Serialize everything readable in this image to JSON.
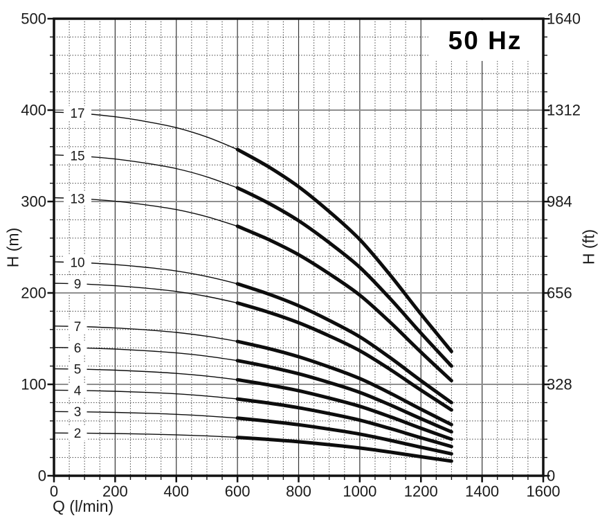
{
  "chart_data": {
    "type": "line",
    "title": "50 Hz",
    "xlabel": "Q (l/min)",
    "ylabel_left": "H (m)",
    "ylabel_right": "H (ft)",
    "x_axis": {
      "min": 0,
      "max": 1600,
      "major_tick_step": 200,
      "minor_tick_step": 50,
      "tick_labels": [
        "0",
        "200",
        "400",
        "600",
        "800",
        "1000",
        "1200",
        "1400",
        "1600"
      ]
    },
    "y_axis_left": {
      "min": 0,
      "max": 500,
      "unit": "m",
      "major_tick_step": 100,
      "minor_tick_step": 20,
      "tick_labels": [
        "0",
        "100",
        "200",
        "300",
        "400",
        "500"
      ]
    },
    "y_axis_right": {
      "unit": "ft",
      "tick_values_ft": [
        0,
        328,
        656,
        984,
        1312,
        1640
      ],
      "tick_labels": [
        "0",
        "328",
        "656",
        "984",
        "1312",
        "1640"
      ],
      "minor_tick_step_m": 20
    },
    "grid": {
      "solid_vertical_every_lmin": 200,
      "dotted_vertical_every_lmin": 50,
      "solid_horizontal_every_m": 100,
      "dotted_horizontal_every_m": 20,
      "solid_horizontal_color": "#8f8f8f",
      "solid_vertical_color": "#333333",
      "dotted_color": "#4a4a4a"
    },
    "curve_color": "#0d0d0d",
    "duty_range_q_lmin": [
      600,
      1300
    ],
    "curve_label_q_lmin": 77,
    "q_lmin": [
      0,
      100,
      200,
      300,
      400,
      500,
      600,
      700,
      800,
      900,
      1000,
      1100,
      1200,
      1300
    ],
    "series": [
      {
        "label": "2",
        "stages": 2,
        "h_m": [
          46.8,
          46.6,
          46.2,
          45.6,
          44.8,
          43.6,
          42.0,
          39.8,
          37.2,
          34.0,
          30.4,
          25.8,
          20.8,
          16.0
        ]
      },
      {
        "label": "3",
        "stages": 3,
        "h_m": [
          70.2,
          69.9,
          69.3,
          68.4,
          67.2,
          65.4,
          63.0,
          59.7,
          55.8,
          51.0,
          45.6,
          38.7,
          31.2,
          24.0
        ]
      },
      {
        "label": "4",
        "stages": 4,
        "h_m": [
          93.6,
          93.2,
          92.4,
          91.2,
          89.6,
          87.2,
          84.0,
          79.6,
          74.4,
          68.0,
          60.8,
          51.6,
          41.6,
          32.0
        ]
      },
      {
        "label": "5",
        "stages": 5,
        "h_m": [
          117.0,
          116.5,
          115.5,
          114.0,
          112.0,
          109.0,
          105.0,
          99.5,
          93.0,
          85.0,
          76.0,
          64.5,
          52.0,
          40.0
        ]
      },
      {
        "label": "6",
        "stages": 6,
        "h_m": [
          140.4,
          139.8,
          138.6,
          136.8,
          134.4,
          130.8,
          126.0,
          119.4,
          111.6,
          102.0,
          91.2,
          77.4,
          62.4,
          48.0
        ]
      },
      {
        "label": "7",
        "stages": 7,
        "h_m": [
          163.8,
          163.1,
          161.7,
          159.6,
          156.8,
          152.6,
          147.0,
          139.3,
          130.2,
          119.0,
          106.4,
          90.3,
          72.8,
          56.0
        ]
      },
      {
        "label": "9",
        "stages": 9,
        "h_m": [
          210.6,
          209.7,
          207.9,
          205.2,
          201.6,
          196.2,
          189.0,
          179.1,
          167.4,
          153.0,
          136.8,
          116.1,
          93.6,
          72.0
        ]
      },
      {
        "label": "10",
        "stages": 10,
        "h_m": [
          234.0,
          233.0,
          231.0,
          228.0,
          224.0,
          218.0,
          210.0,
          199.0,
          186.0,
          170.0,
          152.0,
          129.0,
          104.0,
          80.0
        ]
      },
      {
        "label": "13",
        "stages": 13,
        "h_m": [
          304.2,
          302.9,
          300.3,
          296.4,
          291.2,
          283.4,
          273.0,
          258.7,
          241.8,
          221.0,
          197.6,
          167.7,
          135.2,
          104.0
        ]
      },
      {
        "label": "15",
        "stages": 15,
        "h_m": [
          351.0,
          349.5,
          346.5,
          342.0,
          336.0,
          327.0,
          315.0,
          298.5,
          279.0,
          255.0,
          228.0,
          193.5,
          156.0,
          120.0
        ]
      },
      {
        "label": "17",
        "stages": 17,
        "h_m": [
          397.8,
          396.1,
          392.7,
          387.6,
          380.8,
          370.6,
          357.0,
          338.3,
          316.2,
          289.0,
          258.4,
          219.3,
          176.8,
          136.0
        ]
      }
    ]
  }
}
